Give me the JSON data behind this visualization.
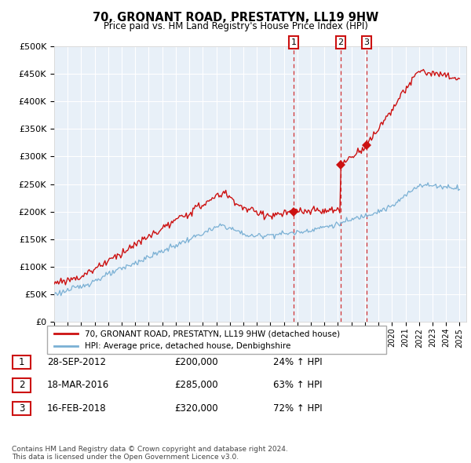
{
  "title": "70, GRONANT ROAD, PRESTATYN, LL19 9HW",
  "subtitle": "Price paid vs. HM Land Registry's House Price Index (HPI)",
  "legend_line1": "70, GRONANT ROAD, PRESTATYN, LL19 9HW (detached house)",
  "legend_line2": "HPI: Average price, detached house, Denbighshire",
  "sale1_date_label": "28-SEP-2012",
  "sale1_price": 200000,
  "sale1_year": 2012.71,
  "sale1_pct": "24% ↑ HPI",
  "sale2_date_label": "18-MAR-2016",
  "sale2_price": 285000,
  "sale2_year": 2016.21,
  "sale2_pct": "63% ↑ HPI",
  "sale3_date_label": "16-FEB-2018",
  "sale3_price": 320000,
  "sale3_year": 2018.12,
  "sale3_pct": "72% ↑ HPI",
  "footer": "Contains HM Land Registry data © Crown copyright and database right 2024.\nThis data is licensed under the Open Government Licence v3.0.",
  "hpi_color": "#7ab0d4",
  "sale_color": "#cc1111",
  "chart_bg": "#e8f0f8",
  "ylim_max": 500000,
  "ylim_min": 0,
  "xlim_min": 1995,
  "xlim_max": 2025.5
}
